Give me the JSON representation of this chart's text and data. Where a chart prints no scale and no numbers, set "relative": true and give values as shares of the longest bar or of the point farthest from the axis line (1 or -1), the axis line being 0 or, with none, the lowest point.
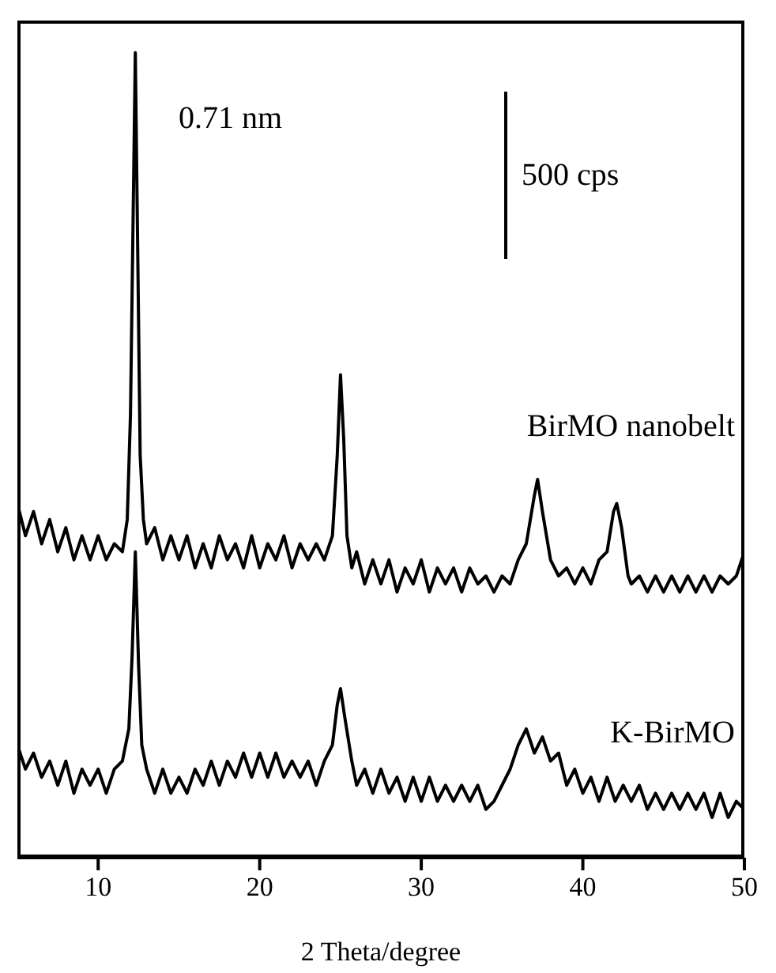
{
  "chart_data": {
    "type": "line",
    "relative": true,
    "xlabel": "2 Theta/degree",
    "xlim": [
      5,
      50
    ],
    "xticks": [
      10,
      20,
      30,
      40,
      50
    ],
    "grid": false,
    "legend": false,
    "marker": "none",
    "line_style": "solid",
    "annotations": [
      "0.71 nm",
      "500 cps"
    ],
    "series": [
      {
        "name": "BirMO nanobelt",
        "color": "#000000",
        "x": [
          5,
          5.5,
          6,
          6.5,
          7,
          7.5,
          8,
          8.5,
          9,
          9.5,
          10,
          10.5,
          11,
          11.5,
          11.8,
          12,
          12.2,
          12.3,
          12.45,
          12.6,
          12.8,
          13,
          13.5,
          14,
          14.5,
          15,
          15.5,
          16,
          16.5,
          17,
          17.5,
          18,
          18.5,
          19,
          19.5,
          20,
          20.5,
          21,
          21.5,
          22,
          22.5,
          23,
          23.5,
          24,
          24.5,
          24.8,
          25,
          25.2,
          25.4,
          25.7,
          26,
          26.5,
          27,
          27.5,
          28,
          28.5,
          29,
          29.5,
          30,
          30.5,
          31,
          31.5,
          32,
          32.5,
          33,
          33.5,
          34,
          34.5,
          35,
          35.5,
          36,
          36.5,
          37,
          37.2,
          37.5,
          38,
          38.5,
          39,
          39.5,
          40,
          40.5,
          41,
          41.5,
          41.9,
          42.1,
          42.4,
          42.8,
          43,
          43.5,
          44,
          44.5,
          45,
          45.5,
          46,
          46.5,
          47,
          47.5,
          48,
          48.5,
          49,
          49.5,
          50
        ],
        "values": [
          0.44,
          0.4,
          0.43,
          0.39,
          0.42,
          0.38,
          0.41,
          0.37,
          0.4,
          0.37,
          0.4,
          0.37,
          0.39,
          0.38,
          0.42,
          0.55,
          0.85,
          1.0,
          0.75,
          0.5,
          0.42,
          0.39,
          0.41,
          0.37,
          0.4,
          0.37,
          0.4,
          0.36,
          0.39,
          0.36,
          0.4,
          0.37,
          0.39,
          0.36,
          0.4,
          0.36,
          0.39,
          0.37,
          0.4,
          0.36,
          0.39,
          0.37,
          0.39,
          0.37,
          0.4,
          0.5,
          0.6,
          0.52,
          0.4,
          0.36,
          0.38,
          0.34,
          0.37,
          0.34,
          0.37,
          0.33,
          0.36,
          0.34,
          0.37,
          0.33,
          0.36,
          0.34,
          0.36,
          0.33,
          0.36,
          0.34,
          0.35,
          0.33,
          0.35,
          0.34,
          0.37,
          0.39,
          0.45,
          0.47,
          0.43,
          0.37,
          0.35,
          0.36,
          0.34,
          0.36,
          0.34,
          0.37,
          0.38,
          0.43,
          0.44,
          0.41,
          0.35,
          0.34,
          0.35,
          0.33,
          0.35,
          0.33,
          0.35,
          0.33,
          0.35,
          0.33,
          0.35,
          0.33,
          0.35,
          0.34,
          0.35,
          0.38
        ]
      },
      {
        "name": "K-BirMO",
        "color": "#000000",
        "x": [
          5,
          5.5,
          6,
          6.5,
          7,
          7.5,
          8,
          8.5,
          9,
          9.5,
          10,
          10.5,
          11,
          11.5,
          11.9,
          12.1,
          12.3,
          12.5,
          12.7,
          13,
          13.5,
          14,
          14.5,
          15,
          15.5,
          16,
          16.5,
          17,
          17.5,
          18,
          18.5,
          19,
          19.5,
          20,
          20.5,
          21,
          21.5,
          22,
          22.5,
          23,
          23.5,
          24,
          24.5,
          24.8,
          25,
          25.3,
          25.7,
          26,
          26.5,
          27,
          27.5,
          28,
          28.5,
          29,
          29.5,
          30,
          30.5,
          31,
          31.5,
          32,
          32.5,
          33,
          33.5,
          34,
          34.5,
          35,
          35.5,
          36,
          36.5,
          37,
          37.5,
          38,
          38.5,
          39,
          39.5,
          40,
          40.5,
          41,
          41.5,
          42,
          42.5,
          43,
          43.5,
          44,
          44.5,
          45,
          45.5,
          46,
          46.5,
          47,
          47.5,
          48,
          48.5,
          49,
          49.5,
          50
        ],
        "values": [
          0.14,
          0.11,
          0.13,
          0.1,
          0.12,
          0.09,
          0.12,
          0.08,
          0.11,
          0.09,
          0.11,
          0.08,
          0.11,
          0.12,
          0.16,
          0.25,
          0.38,
          0.24,
          0.14,
          0.11,
          0.08,
          0.11,
          0.08,
          0.1,
          0.08,
          0.11,
          0.09,
          0.12,
          0.09,
          0.12,
          0.1,
          0.13,
          0.1,
          0.13,
          0.1,
          0.13,
          0.1,
          0.12,
          0.1,
          0.12,
          0.09,
          0.12,
          0.14,
          0.19,
          0.21,
          0.17,
          0.12,
          0.09,
          0.11,
          0.08,
          0.11,
          0.08,
          0.1,
          0.07,
          0.1,
          0.07,
          0.1,
          0.07,
          0.09,
          0.07,
          0.09,
          0.07,
          0.09,
          0.06,
          0.07,
          0.09,
          0.11,
          0.14,
          0.16,
          0.13,
          0.15,
          0.12,
          0.13,
          0.09,
          0.11,
          0.08,
          0.1,
          0.07,
          0.1,
          0.07,
          0.09,
          0.07,
          0.09,
          0.06,
          0.08,
          0.06,
          0.08,
          0.06,
          0.08,
          0.06,
          0.08,
          0.05,
          0.08,
          0.05,
          0.07,
          0.06
        ]
      }
    ]
  }
}
